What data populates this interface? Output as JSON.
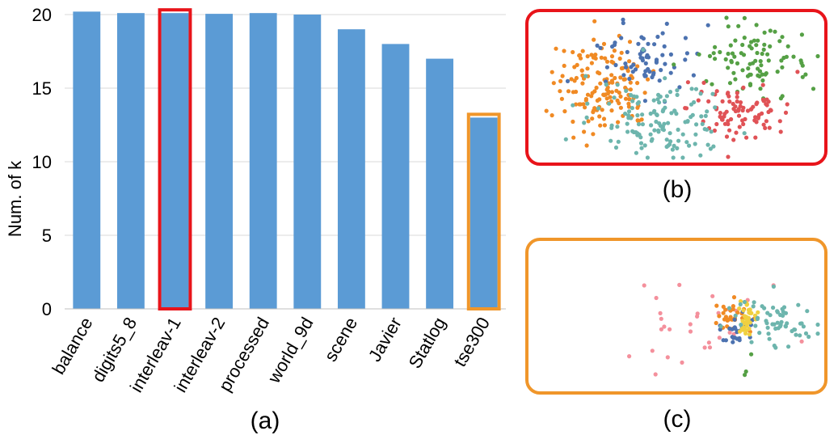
{
  "chart_data": [
    {
      "type": "bar",
      "panel_label": "(a)",
      "ylabel": "Num. of k",
      "ylim": [
        0,
        20
      ],
      "yticks": [
        "0",
        "5",
        "10",
        "15",
        "20"
      ],
      "grid": true,
      "categories": [
        "balance",
        "digits5_8",
        "interleav-1",
        "interleav-2",
        "processed",
        "world_9d",
        "scene",
        "Javier",
        "Statlog",
        "tse300"
      ],
      "values": [
        20.2,
        20.1,
        20.1,
        20.05,
        20.1,
        20.0,
        19.0,
        18.0,
        17.0,
        13.0
      ],
      "highlights": [
        {
          "category": "interleav-1",
          "color": "#e8141a"
        },
        {
          "category": "tse300",
          "color": "#f0962a"
        }
      ],
      "bar_color": "#5b9bd5"
    },
    {
      "type": "scatter",
      "panel_label": "(b)",
      "frame_color": "#e8141a",
      "clusters": [
        {
          "color": "#f08a24",
          "count": 150
        },
        {
          "color": "#4c72b0",
          "count": 70
        },
        {
          "color": "#55a045",
          "count": 90
        },
        {
          "color": "#e05256",
          "count": 90
        },
        {
          "color": "#6db5ad",
          "count": 130
        }
      ]
    },
    {
      "type": "scatter",
      "panel_label": "(c)",
      "frame_color": "#f0962a",
      "clusters": [
        {
          "color": "#f4909c",
          "count": 30
        },
        {
          "color": "#f08a24",
          "count": 30
        },
        {
          "color": "#4c72b0",
          "count": 25
        },
        {
          "color": "#f0d040",
          "count": 40
        },
        {
          "color": "#6db5ad",
          "count": 60
        },
        {
          "color": "#55a045",
          "count": 3
        }
      ]
    }
  ]
}
